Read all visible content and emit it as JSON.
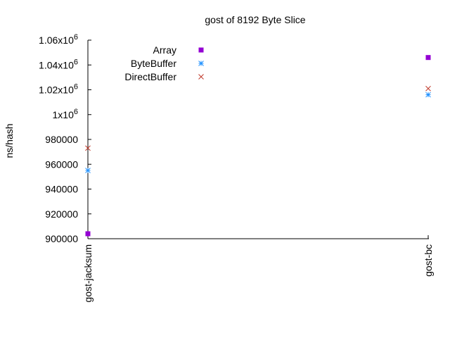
{
  "chart_data": {
    "type": "scatter",
    "title": "gost of 8192 Byte Slice",
    "xlabel": "",
    "ylabel": "ns/hash",
    "categories": [
      "gost-jacksum",
      "gost-bc"
    ],
    "ylim": [
      900000,
      1060000
    ],
    "yticks": [
      {
        "value": 900000,
        "label": "900000"
      },
      {
        "value": 920000,
        "label": "920000"
      },
      {
        "value": 940000,
        "label": "940000"
      },
      {
        "value": 960000,
        "label": "960000"
      },
      {
        "value": 980000,
        "label": "980000"
      },
      {
        "value": 1000000,
        "label": "1x10",
        "exp": "6"
      },
      {
        "value": 1020000,
        "label": "1.02x10",
        "exp": "6"
      },
      {
        "value": 1040000,
        "label": "1.04x10",
        "exp": "6"
      },
      {
        "value": 1060000,
        "label": "1.06x10",
        "exp": "6"
      }
    ],
    "grid": false,
    "legend_position": "top-left",
    "series": [
      {
        "name": "Array",
        "marker": "square",
        "color": "#9400d3",
        "values": [
          904000,
          1046000
        ]
      },
      {
        "name": "ByteBuffer",
        "marker": "asterisk",
        "color": "#1e90ff",
        "values": [
          955000,
          1016000
        ]
      },
      {
        "name": "DirectBuffer",
        "marker": "x",
        "color": "#c0392b",
        "values": [
          973000,
          1021000
        ]
      }
    ]
  }
}
